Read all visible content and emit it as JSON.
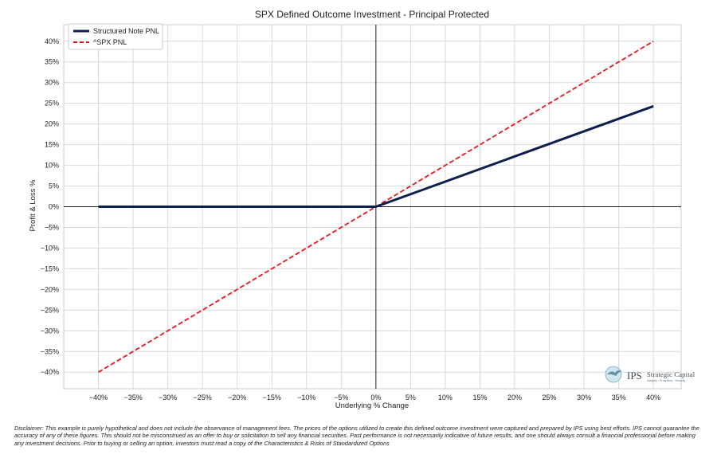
{
  "chart_data": {
    "type": "line",
    "title": "SPX Defined Outcome Investment - Principal Protected",
    "xlabel": "Underlying % Change",
    "ylabel": "Profit & Loss %",
    "xlim": [
      -0.45,
      0.44
    ],
    "ylim": [
      -0.44,
      0.44
    ],
    "grid": true,
    "legend_position": "top-left",
    "x_ticks": [
      -0.4,
      -0.35,
      -0.3,
      -0.25,
      -0.2,
      -0.15,
      -0.1,
      -0.05,
      0,
      0.05,
      0.1,
      0.15,
      0.2,
      0.25,
      0.3,
      0.35,
      0.4
    ],
    "x_tick_labels": [
      "−40%",
      "−35%",
      "−30%",
      "−25%",
      "−20%",
      "−15%",
      "−10%",
      "−5%",
      "0%",
      "5%",
      "10%",
      "15%",
      "20%",
      "25%",
      "30%",
      "35%",
      "40%"
    ],
    "y_ticks": [
      0.4,
      0.35,
      0.3,
      0.25,
      0.2,
      0.15,
      0.1,
      0.05,
      0,
      -0.05,
      -0.1,
      -0.15,
      -0.2,
      -0.25,
      -0.3,
      -0.35,
      -0.4
    ],
    "y_tick_labels": [
      "40%",
      "35%",
      "30%",
      "25%",
      "20%",
      "15%",
      "10%",
      "5%",
      "0%",
      "−5%",
      "−10%",
      "−15%",
      "−20%",
      "−25%",
      "−30%",
      "−35%",
      "−40%"
    ],
    "series": [
      {
        "name": "Structured Note PNL",
        "color": "#0d1f4f",
        "style": "solid",
        "x": [
          -0.4,
          0,
          0.4
        ],
        "y": [
          0,
          0,
          0.243
        ]
      },
      {
        "name": "^SPX PNL",
        "color": "#e8161b",
        "style": "dashed",
        "x": [
          -0.4,
          0.4
        ],
        "y": [
          -0.4,
          0.4
        ]
      }
    ]
  },
  "logo": {
    "title": "Strategic Capital",
    "monogram": "IPS",
    "tagline": "Integrity · Prosperity · Security"
  },
  "disclaimer": "Disclaimer: This example is purely hypothetical and does not include the observance of management fees. The prices of the options utilized to create this defined outcome investment were captured and prepared by IPS using best efforts. IPS cannot guarantee the accuracy of any of these figures. This should not be misconstrued as an offer to buy or solicitation to sell any financial securities. Past performance is not necessarily indicative of future results, and one should always consult a financial professional before making any investment decisions. Prior to buying or selling an option, investors must read a copy of the Characteristics & Risks of Standardized Options"
}
